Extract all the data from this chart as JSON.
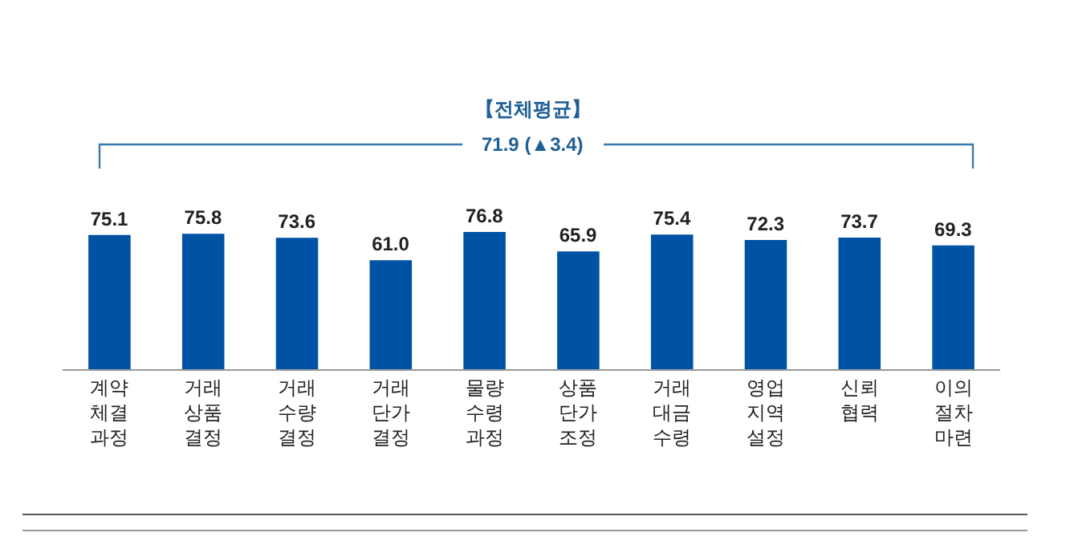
{
  "chart_data": {
    "type": "bar",
    "title": "【전체평균】",
    "annotations": [
      "71.9 (▲3.4)"
    ],
    "categories": [
      "계약 체결 과정",
      "거래 상품 결정",
      "거래 수량 결정",
      "거래 단가 결정",
      "물량 수령 과정",
      "상품 단가 조정",
      "거래 대금 수령",
      "영업 지역 설정",
      "신뢰 협력",
      "이의 절차 마련"
    ],
    "values": [
      75.1,
      75.8,
      73.6,
      61.0,
      76.8,
      65.9,
      75.4,
      72.3,
      73.7,
      69.3
    ],
    "value_labels": [
      "75.1",
      "75.8",
      "73.6",
      "61.0",
      "76.8",
      "65.9",
      "75.4",
      "72.3",
      "73.7",
      "69.3"
    ],
    "color": "#0052a5",
    "tick_labels": "x"
  }
}
